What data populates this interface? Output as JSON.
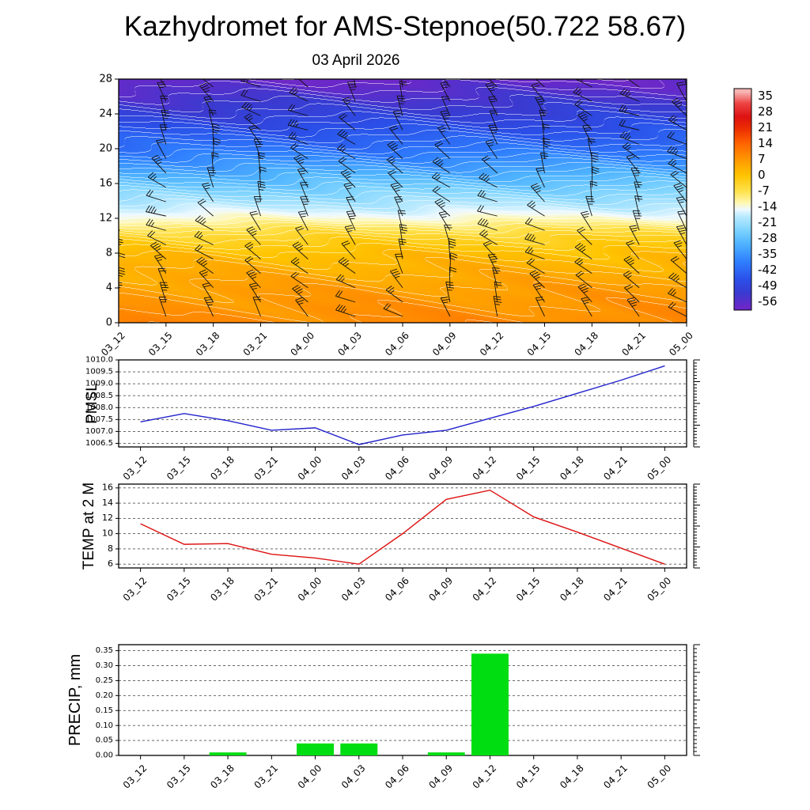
{
  "title": "Kazhydromet for AMS-Stepnoe(50.722 58.67)",
  "subtitle": "03 April 2026",
  "time_labels": [
    "03_12",
    "03_15",
    "03_18",
    "03_21",
    "04_00",
    "04_03",
    "04_06",
    "04_09",
    "04_12",
    "04_15",
    "04_18",
    "04_21",
    "05_00"
  ],
  "colors": {
    "pmsl_line": "#2222cc",
    "temp_line": "#dd1111",
    "precip_bar": "#00dd11",
    "axis": "#000000",
    "grid": "#444444",
    "contour_line": "#ffffff",
    "barb": "#111111"
  },
  "palette_stops": [
    [
      37,
      "#f7b4b4"
    ],
    [
      32,
      "#ee4444"
    ],
    [
      26,
      "#dd1111"
    ],
    [
      20,
      "#ee3300"
    ],
    [
      14,
      "#ff6600"
    ],
    [
      7,
      "#ff9900"
    ],
    [
      0,
      "#ffc400"
    ],
    [
      -7,
      "#ffe24d"
    ],
    [
      -12,
      "#fff7b0"
    ],
    [
      -15,
      "#eef9ff"
    ],
    [
      -18,
      "#baeaff"
    ],
    [
      -24,
      "#7fd4ff"
    ],
    [
      -30,
      "#4fb4ff"
    ],
    [
      -38,
      "#2f7fff"
    ],
    [
      -46,
      "#2a4fe8"
    ],
    [
      -52,
      "#3a3ad0"
    ],
    [
      -58,
      "#6a28c8"
    ],
    [
      -62,
      "#7a30c0"
    ]
  ],
  "chart_data": [
    {
      "type": "heatmap",
      "name": "temperature-height-cross-section",
      "description": "Time-height cross-section of temperature (shaded, deg C) with wind barbs overlaid",
      "categories": [
        "03_12",
        "03_15",
        "03_18",
        "03_21",
        "04_00",
        "04_03",
        "04_06",
        "04_09",
        "04_12",
        "04_15",
        "04_18",
        "04_21",
        "05_00"
      ],
      "y_ticks": [
        0,
        4,
        8,
        12,
        16,
        20,
        24,
        28
      ],
      "ylim": [
        0,
        28
      ],
      "temperature_profile_h_T": [
        [
          0,
          9
        ],
        [
          4,
          6
        ],
        [
          8,
          1
        ],
        [
          10,
          -4
        ],
        [
          11,
          -8
        ],
        [
          12,
          -13
        ],
        [
          13,
          -17
        ],
        [
          16,
          -27
        ],
        [
          20,
          -40
        ],
        [
          24,
          -50
        ],
        [
          28,
          -58
        ]
      ],
      "contour_interval": 1.75,
      "colorbar_ticks": [
        35,
        28,
        21,
        14,
        7,
        0,
        -7,
        -14,
        -21,
        -28,
        -35,
        -42,
        -49,
        -56
      ],
      "overlay": "wind barbs"
    },
    {
      "type": "line",
      "ylabel": "PMSL",
      "categories": [
        "03_12",
        "03_15",
        "03_18",
        "03_21",
        "04_00",
        "04_03",
        "04_06",
        "04_09",
        "04_12",
        "04_15",
        "04_18",
        "04_21",
        "05_00"
      ],
      "values": [
        1007.4,
        1007.75,
        1007.45,
        1007.05,
        1007.15,
        1006.45,
        1006.85,
        1007.05,
        1007.55,
        1008.05,
        1008.6,
        1009.15,
        1009.75
      ],
      "y_ticks": [
        1006.5,
        1007.0,
        1007.5,
        1008.0,
        1008.5,
        1009.0,
        1009.5,
        1010.0
      ],
      "ylim": [
        1006.35,
        1010.0
      ],
      "tick_format": 1,
      "grid": "dashed"
    },
    {
      "type": "line",
      "ylabel": "TEMP at 2 M",
      "categories": [
        "03_12",
        "03_15",
        "03_18",
        "03_21",
        "04_00",
        "04_03",
        "04_06",
        "04_09",
        "04_12",
        "04_15",
        "04_18",
        "04_21",
        "05_00"
      ],
      "values": [
        11.3,
        8.6,
        8.7,
        7.3,
        6.8,
        6.0,
        10.0,
        14.5,
        15.7,
        12.2,
        10.2,
        8.1,
        6.0
      ],
      "y_ticks": [
        6,
        8,
        10,
        12,
        14,
        16
      ],
      "ylim": [
        5.5,
        16.5
      ],
      "tick_format": 0,
      "grid": "dashed"
    },
    {
      "type": "bar",
      "ylabel": "PRECIP, mm",
      "categories": [
        "03_12",
        "03_15",
        "03_18",
        "03_21",
        "04_00",
        "04_03",
        "04_06",
        "04_09",
        "04_12",
        "04_15",
        "04_18",
        "04_21",
        "05_00"
      ],
      "values": [
        0,
        0,
        0.01,
        0,
        0.04,
        0.04,
        0,
        0.01,
        0.34,
        0,
        0,
        0,
        0
      ],
      "y_ticks": [
        0.0,
        0.05,
        0.1,
        0.15,
        0.2,
        0.25,
        0.3,
        0.35
      ],
      "ylim": [
        0,
        0.37
      ],
      "tick_format": 2,
      "grid": "dashed"
    }
  ]
}
